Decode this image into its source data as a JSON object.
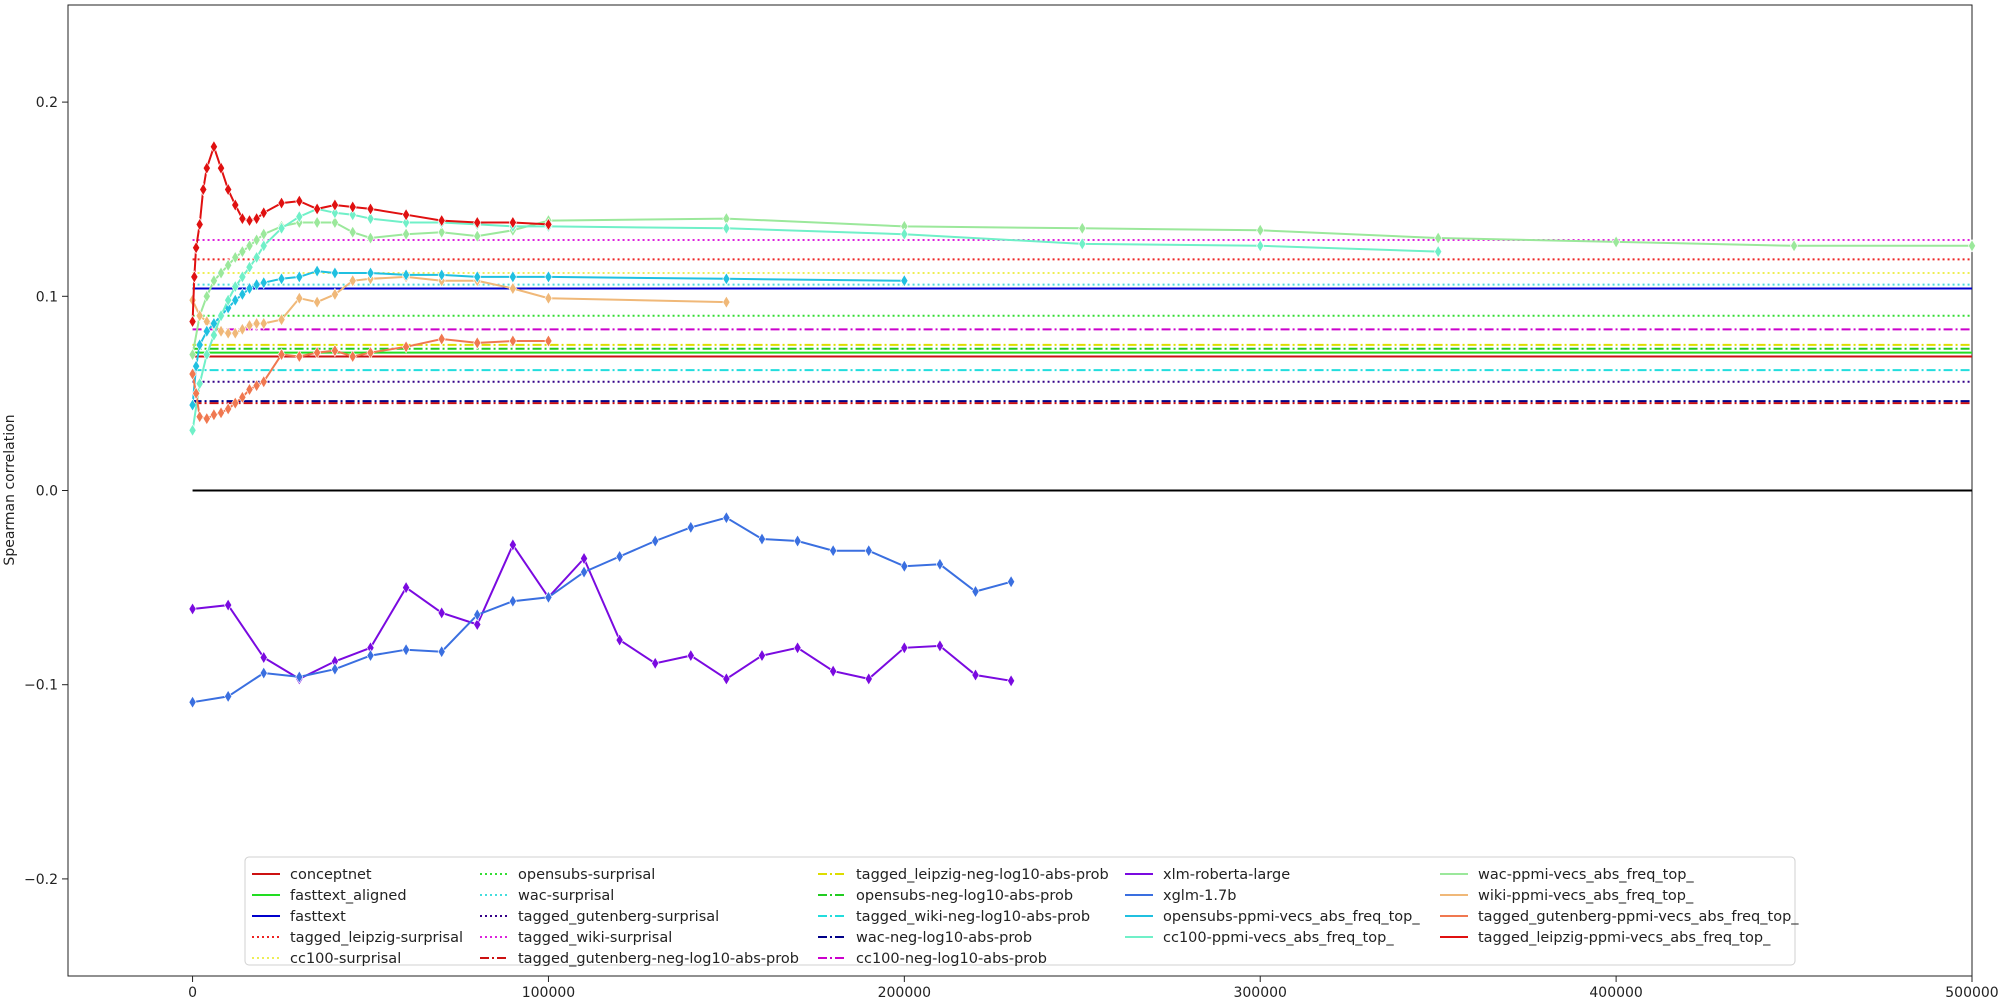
{
  "chart_data": {
    "type": "line",
    "title": "",
    "xlabel": "",
    "ylabel": "Spearman correlation",
    "xlim": [
      -35000,
      500000
    ],
    "ylim": [
      -0.25,
      0.25
    ],
    "xticks": [
      0,
      100000,
      200000,
      300000,
      400000,
      500000
    ],
    "yticks": [
      -0.2,
      -0.1,
      0.0,
      0.1,
      0.2
    ],
    "xtick_labels": [
      "0",
      "100000",
      "200000",
      "300000",
      "400000",
      "500000"
    ],
    "ytick_labels": [
      "−0.2",
      "−0.1",
      "0.0",
      "0.1",
      "0.2"
    ],
    "grid": false,
    "legend_position": "bottom-center",
    "legend_columns": 5,
    "zero_line": true,
    "baseline_range": [
      0,
      500000
    ],
    "baselines": [
      {
        "name": "conceptnet",
        "value": 0.069,
        "color": "#cc1111",
        "dash": "solid"
      },
      {
        "name": "fasttext_aligned",
        "value": 0.071,
        "color": "#22dd22",
        "dash": "solid"
      },
      {
        "name": "fasttext",
        "value": 0.104,
        "color": "#0000cc",
        "dash": "solid"
      },
      {
        "name": "tagged_leipzig-surprisal",
        "value": 0.119,
        "color": "#ee2222",
        "dash": "dotted"
      },
      {
        "name": "cc100-surprisal",
        "value": 0.112,
        "color": "#eeee55",
        "dash": "dotted"
      },
      {
        "name": "opensubs-surprisal",
        "value": 0.09,
        "color": "#33dd33",
        "dash": "dotted"
      },
      {
        "name": "wac-surprisal",
        "value": 0.106,
        "color": "#44dddd",
        "dash": "dotted"
      },
      {
        "name": "tagged_gutenberg-surprisal",
        "value": 0.056,
        "color": "#330088",
        "dash": "dotted"
      },
      {
        "name": "tagged_wiki-surprisal",
        "value": 0.129,
        "color": "#dd22dd",
        "dash": "dotted"
      },
      {
        "name": "tagged_gutenberg-neg-log10-abs-prob",
        "value": 0.045,
        "color": "#cc1111",
        "dash": "dashdot"
      },
      {
        "name": "tagged_leipzig-neg-log10-abs-prob",
        "value": 0.075,
        "color": "#dddd00",
        "dash": "dashdot"
      },
      {
        "name": "opensubs-neg-log10-abs-prob",
        "value": 0.073,
        "color": "#22cc22",
        "dash": "dashdot"
      },
      {
        "name": "tagged_wiki-neg-log10-abs-prob",
        "value": 0.062,
        "color": "#22dddd",
        "dash": "dashdot"
      },
      {
        "name": "wac-neg-log10-abs-prob",
        "value": 0.046,
        "color": "#000088",
        "dash": "dashdot"
      },
      {
        "name": "cc100-neg-log10-abs-prob",
        "value": 0.083,
        "color": "#cc00cc",
        "dash": "dashdot"
      }
    ],
    "series": [
      {
        "name": "xlm-roberta-large",
        "color": "#7a0ae0",
        "x": [
          0,
          10000,
          20000,
          30000,
          40000,
          50000,
          60000,
          70000,
          80000,
          90000,
          100000,
          110000,
          120000,
          130000,
          140000,
          150000,
          160000,
          170000,
          180000,
          190000,
          200000,
          210000,
          220000,
          230000
        ],
        "y": [
          -0.061,
          -0.059,
          -0.086,
          -0.097,
          -0.088,
          -0.081,
          -0.05,
          -0.063,
          -0.069,
          -0.028,
          -0.055,
          -0.035,
          -0.077,
          -0.089,
          -0.085,
          -0.097,
          -0.085,
          -0.081,
          -0.093,
          -0.097,
          -0.081,
          -0.08,
          -0.095,
          -0.098
        ]
      },
      {
        "name": "xglm-1.7b",
        "color": "#3a6fe0",
        "x": [
          0,
          10000,
          20000,
          30000,
          40000,
          50000,
          60000,
          70000,
          80000,
          90000,
          100000,
          110000,
          120000,
          130000,
          140000,
          150000,
          160000,
          170000,
          180000,
          190000,
          200000,
          210000,
          220000,
          230000
        ],
        "y": [
          -0.109,
          -0.106,
          -0.094,
          -0.096,
          -0.092,
          -0.085,
          -0.082,
          -0.083,
          -0.064,
          -0.057,
          -0.055,
          -0.042,
          -0.034,
          -0.026,
          -0.019,
          -0.014,
          -0.025,
          -0.026,
          -0.031,
          -0.031,
          -0.039,
          -0.038,
          -0.052,
          -0.047
        ]
      },
      {
        "name": "wac-ppmi-vecs_abs_freq_top_",
        "color": "#9be89b",
        "x": [
          0,
          2000,
          4000,
          6000,
          8000,
          10000,
          12000,
          14000,
          16000,
          18000,
          20000,
          25000,
          30000,
          35000,
          40000,
          45000,
          50000,
          60000,
          70000,
          80000,
          90000,
          100000,
          150000,
          200000,
          250000,
          300000,
          350000,
          400000,
          450000,
          500000
        ],
        "y": [
          0.07,
          0.09,
          0.1,
          0.108,
          0.112,
          0.116,
          0.12,
          0.123,
          0.126,
          0.129,
          0.132,
          0.136,
          0.138,
          0.138,
          0.138,
          0.133,
          0.13,
          0.132,
          0.133,
          0.131,
          0.134,
          0.139,
          0.14,
          0.136,
          0.135,
          0.134,
          0.13,
          0.128,
          0.126,
          0.126
        ]
      },
      {
        "name": "wiki-ppmi-vecs_abs_freq_top_",
        "color": "#f0b878",
        "x": [
          0,
          2000,
          4000,
          6000,
          8000,
          10000,
          12000,
          14000,
          16000,
          18000,
          20000,
          25000,
          30000,
          35000,
          40000,
          45000,
          50000,
          60000,
          70000,
          80000,
          90000,
          100000,
          150000
        ],
        "y": [
          0.098,
          0.09,
          0.087,
          0.085,
          0.082,
          0.081,
          0.081,
          0.083,
          0.085,
          0.086,
          0.086,
          0.088,
          0.099,
          0.097,
          0.101,
          0.108,
          0.109,
          0.11,
          0.108,
          0.108,
          0.104,
          0.099,
          0.097
        ]
      },
      {
        "name": "opensubs-ppmi-vecs_abs_freq_top_",
        "color": "#20c0e0",
        "x": [
          0,
          1000,
          2000,
          4000,
          6000,
          8000,
          10000,
          12000,
          14000,
          16000,
          18000,
          20000,
          25000,
          30000,
          35000,
          40000,
          50000,
          60000,
          70000,
          80000,
          90000,
          100000,
          150000,
          200000
        ],
        "y": [
          0.044,
          0.064,
          0.075,
          0.082,
          0.086,
          0.09,
          0.094,
          0.098,
          0.101,
          0.104,
          0.106,
          0.107,
          0.109,
          0.11,
          0.113,
          0.112,
          0.112,
          0.111,
          0.111,
          0.11,
          0.11,
          0.11,
          0.109,
          0.108
        ]
      },
      {
        "name": "cc100-ppmi-vecs_abs_freq_top_",
        "color": "#70f0c8",
        "x": [
          0,
          2000,
          4000,
          6000,
          8000,
          10000,
          12000,
          14000,
          16000,
          18000,
          20000,
          25000,
          30000,
          35000,
          40000,
          45000,
          50000,
          60000,
          70000,
          80000,
          90000,
          100000,
          150000,
          200000,
          250000,
          300000,
          350000
        ],
        "y": [
          0.031,
          0.055,
          0.07,
          0.08,
          0.09,
          0.098,
          0.105,
          0.11,
          0.115,
          0.12,
          0.126,
          0.135,
          0.141,
          0.145,
          0.143,
          0.142,
          0.14,
          0.138,
          0.138,
          0.137,
          0.136,
          0.136,
          0.135,
          0.132,
          0.127,
          0.126,
          0.123
        ]
      },
      {
        "name": "tagged_gutenberg-ppmi-vecs_abs_freq_top_",
        "color": "#f07850",
        "x": [
          0,
          1000,
          2000,
          4000,
          6000,
          8000,
          10000,
          12000,
          14000,
          16000,
          18000,
          20000,
          25000,
          30000,
          35000,
          40000,
          45000,
          50000,
          60000,
          70000,
          80000,
          90000,
          100000
        ],
        "y": [
          0.06,
          0.05,
          0.038,
          0.037,
          0.039,
          0.04,
          0.042,
          0.045,
          0.048,
          0.052,
          0.054,
          0.056,
          0.07,
          0.069,
          0.071,
          0.072,
          0.069,
          0.071,
          0.074,
          0.078,
          0.076,
          0.077,
          0.077
        ]
      },
      {
        "name": "tagged_leipzig-ppmi-vecs_abs_freq_top_",
        "color": "#e01010",
        "x": [
          0,
          500,
          1000,
          2000,
          3000,
          4000,
          6000,
          8000,
          10000,
          12000,
          14000,
          16000,
          18000,
          20000,
          25000,
          30000,
          35000,
          40000,
          45000,
          50000,
          60000,
          70000,
          80000,
          90000,
          100000
        ],
        "y": [
          0.087,
          0.11,
          0.125,
          0.137,
          0.155,
          0.166,
          0.177,
          0.166,
          0.155,
          0.147,
          0.14,
          0.139,
          0.14,
          0.143,
          0.148,
          0.149,
          0.145,
          0.147,
          0.146,
          0.145,
          0.142,
          0.139,
          0.138,
          0.138,
          0.137
        ]
      }
    ],
    "legend": [
      [
        "conceptnet",
        "fasttext_aligned",
        "fasttext",
        "tagged_leipzig-surprisal",
        "cc100-surprisal"
      ],
      [
        "opensubs-surprisal",
        "wac-surprisal",
        "tagged_gutenberg-surprisal",
        "tagged_wiki-surprisal",
        "tagged_gutenberg-neg-log10-abs-prob"
      ],
      [
        "tagged_leipzig-neg-log10-abs-prob",
        "opensubs-neg-log10-abs-prob",
        "tagged_wiki-neg-log10-abs-prob",
        "wac-neg-log10-abs-prob",
        "cc100-neg-log10-abs-prob"
      ],
      [
        "xlm-roberta-large",
        "xglm-1.7b",
        "opensubs-ppmi-vecs_abs_freq_top_",
        "cc100-ppmi-vecs_abs_freq_top_"
      ],
      [
        "wac-ppmi-vecs_abs_freq_top_",
        "wiki-ppmi-vecs_abs_freq_top_",
        "tagged_gutenberg-ppmi-vecs_abs_freq_top_",
        "tagged_leipzig-ppmi-vecs_abs_freq_top_"
      ]
    ],
    "legend_styles": {
      "opensubs-ppmi-vecs_abs_freq_top_": {
        "color": "#20c0e0",
        "dash": "solid"
      },
      "cc100-ppmi-vecs_abs_freq_top_": {
        "color": "#70f0c8",
        "dash": "solid"
      },
      "xlm-roberta-large": {
        "color": "#7a0ae0",
        "dash": "solid"
      },
      "xglm-1.7b": {
        "color": "#3a6fe0",
        "dash": "solid"
      },
      "wac-ppmi-vecs_abs_freq_top_": {
        "color": "#9be89b",
        "dash": "solid"
      },
      "wiki-ppmi-vecs_abs_freq_top_": {
        "color": "#f0b878",
        "dash": "solid"
      },
      "tagged_gutenberg-ppmi-vecs_abs_freq_top_": {
        "color": "#f07850",
        "dash": "solid"
      },
      "tagged_leipzig-ppmi-vecs_abs_freq_top_": {
        "color": "#e01010",
        "dash": "solid"
      }
    }
  }
}
